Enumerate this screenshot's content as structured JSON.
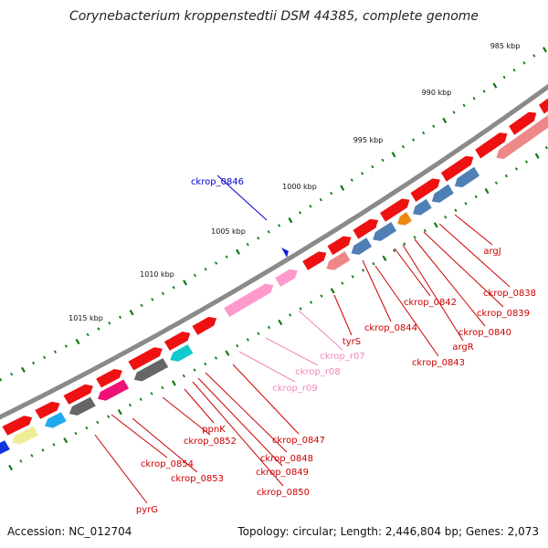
{
  "title": "Corynebacterium kroppenstedtii DSM 44385, complete genome",
  "footer": {
    "accession": "Accession: NC_012704",
    "summary": "Topology: circular; Length: 2,446,804 bp; Genes: 2,073"
  },
  "scale_labels": [
    "985 kbp",
    "990 kbp",
    "995 kbp",
    "1000 kbp",
    "1005 kbp",
    "1010 kbp",
    "1015 kbp"
  ],
  "gene_labels": [
    {
      "text": "ckrop_0846",
      "color": "#0000cc"
    },
    {
      "text": "argJ",
      "color": "#cc0000"
    },
    {
      "text": "ckrop_0838",
      "color": "#cc0000"
    },
    {
      "text": "ckrop_0839",
      "color": "#cc0000"
    },
    {
      "text": "ckrop_0842",
      "color": "#cc0000"
    },
    {
      "text": "ckrop_0840",
      "color": "#cc0000"
    },
    {
      "text": "ckrop_0844",
      "color": "#cc0000"
    },
    {
      "text": "argR",
      "color": "#cc0000"
    },
    {
      "text": "tyrS",
      "color": "#cc0000"
    },
    {
      "text": "ckrop_0843",
      "color": "#cc0000"
    },
    {
      "text": "ckrop_r07",
      "color": "#ee88bb"
    },
    {
      "text": "ckrop_r08",
      "color": "#ee88bb"
    },
    {
      "text": "ckrop_r09",
      "color": "#ee88bb"
    },
    {
      "text": "ckrop_0847",
      "color": "#cc0000"
    },
    {
      "text": "ppnK",
      "color": "#cc0000"
    },
    {
      "text": "ckrop_0852",
      "color": "#cc0000"
    },
    {
      "text": "ckrop_0848",
      "color": "#cc0000"
    },
    {
      "text": "ckrop_0849",
      "color": "#cc0000"
    },
    {
      "text": "ckrop_0854",
      "color": "#cc0000"
    },
    {
      "text": "ckrop_0853",
      "color": "#cc0000"
    },
    {
      "text": "ckrop_0850",
      "color": "#cc0000"
    },
    {
      "text": "pyrG",
      "color": "#cc0000"
    }
  ],
  "colors": {
    "backbone": "#8a8a8a",
    "forward_gene": "#ee1111",
    "reverse_gene_pink": "#ee8888",
    "rna": "#ff99cc",
    "blue": "#4f7fb5",
    "orange": "#ee8811",
    "gray": "#666666",
    "magenta": "#ee1177",
    "cyan": "#11c9cf",
    "light_blue": "#22aaee",
    "yellow": "#eeee99",
    "dark_blue": "#1133dd",
    "tick": "#117711"
  }
}
